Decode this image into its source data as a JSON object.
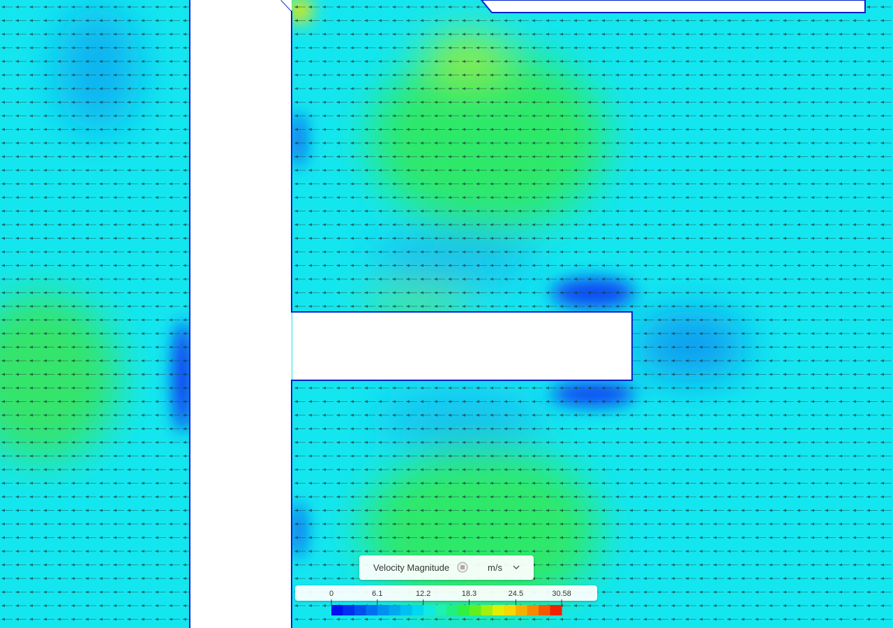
{
  "legend": {
    "title": "Velocity Magnitude",
    "unit": "m/s",
    "range": [
      0,
      30.58
    ],
    "ticks": [
      0,
      6.1,
      12.2,
      18.3,
      24.5,
      30.58
    ]
  }
}
